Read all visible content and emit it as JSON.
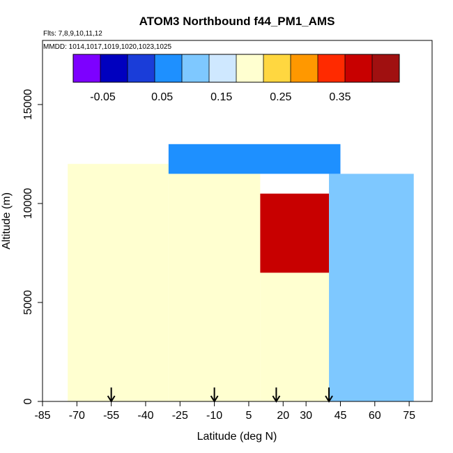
{
  "chart_data": {
    "type": "heatmap",
    "title": "ATOM3 Northbound f44_PM1_AMS",
    "subtitle_flights": "Flts: 7,8,9,10,11,12",
    "subtitle_dates": "MMDD: 1014,1017,1019,1020,1023,1025",
    "xlabel": "Latitude (deg N)",
    "ylabel": "Altitude (m)",
    "xlim": [
      -85,
      85
    ],
    "ylim": [
      0,
      18000
    ],
    "x_ticks": [
      -85,
      -70,
      -55,
      -40,
      -25,
      -10,
      5,
      20,
      30,
      45,
      60,
      75
    ],
    "x_tick_labels": [
      "-85",
      "-70",
      "-55",
      "-40",
      "-25",
      "-10",
      "5",
      "20",
      "30",
      "45",
      "60",
      "75"
    ],
    "y_ticks": [
      0,
      5000,
      10000,
      15000
    ],
    "y_tick_labels": [
      "0",
      "5000",
      "10000",
      "15000"
    ],
    "colorbar": {
      "min": -0.1,
      "max": 0.45,
      "ticks": [
        -0.05,
        0.05,
        0.15,
        0.25,
        0.35
      ],
      "tick_labels": [
        "-0.05",
        "0.05",
        "0.15",
        "0.25",
        "0.35"
      ],
      "colors": [
        "#7d00ff",
        "#0000bf",
        "#1a3dd9",
        "#1e90ff",
        "#7ec8ff",
        "#cfe8ff",
        "#ffffd0",
        "#ffd740",
        "#ff9800",
        "#ff2a00",
        "#c80000",
        "#a01010"
      ]
    },
    "arrow_latitudes": [
      -55,
      -10,
      17,
      40
    ],
    "shaded_regions": [
      {
        "lat": [
          -74,
          -30
        ],
        "alt": [
          0,
          12000
        ],
        "value": 0.22
      },
      {
        "lat": [
          -30,
          10
        ],
        "alt": [
          0,
          12500
        ],
        "value": 0.18
      },
      {
        "lat": [
          10,
          40
        ],
        "alt": [
          6500,
          10500
        ],
        "value": 0.38
      },
      {
        "lat": [
          10,
          40
        ],
        "alt": [
          0,
          6500
        ],
        "value": 0.2
      },
      {
        "lat": [
          40,
          77
        ],
        "alt": [
          0,
          11500
        ],
        "value": 0.1
      },
      {
        "lat": [
          -30,
          45
        ],
        "alt": [
          11500,
          13000
        ],
        "value": 0.07
      }
    ]
  }
}
